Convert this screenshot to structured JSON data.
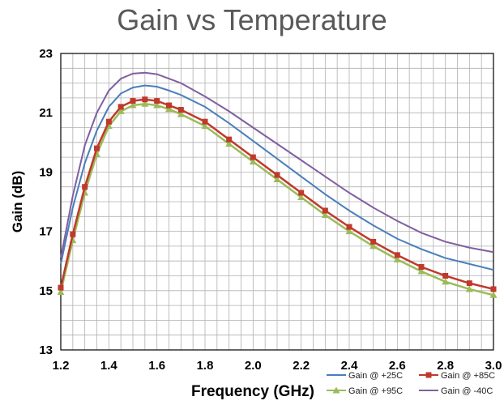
{
  "chart_data": {
    "type": "line",
    "title": "Gain vs Temperature",
    "xlabel": "Frequency (GHz)",
    "ylabel": "Gain (dB)",
    "xlim": [
      1.2,
      3.0
    ],
    "ylim": [
      13,
      23
    ],
    "xticks": [
      "1.2",
      "1.4",
      "1.6",
      "1.8",
      "2.0",
      "2.2",
      "2.4",
      "2.6",
      "2.8",
      "3.0"
    ],
    "yticks": [
      "13",
      "15",
      "17",
      "19",
      "21",
      "23"
    ],
    "grid": true,
    "legend_position": "bottom-right",
    "x": [
      1.2,
      1.25,
      1.3,
      1.35,
      1.4,
      1.45,
      1.5,
      1.55,
      1.6,
      1.65,
      1.7,
      1.8,
      1.9,
      2.0,
      2.1,
      2.2,
      2.3,
      2.4,
      2.5,
      2.6,
      2.7,
      2.8,
      2.9,
      3.0
    ],
    "series": [
      {
        "name": "Gain @ +25C",
        "color": "#4a7ebb",
        "marker": "none",
        "values": [
          15.9,
          17.8,
          19.3,
          20.4,
          21.2,
          21.65,
          21.85,
          21.92,
          21.88,
          21.75,
          21.6,
          21.2,
          20.65,
          20.05,
          19.45,
          18.85,
          18.25,
          17.7,
          17.2,
          16.75,
          16.4,
          16.1,
          15.9,
          15.7
        ]
      },
      {
        "name": "Gain @ +85C",
        "color": "#c0392b",
        "marker": "square",
        "values": [
          15.1,
          16.9,
          18.5,
          19.8,
          20.7,
          21.2,
          21.4,
          21.45,
          21.4,
          21.25,
          21.1,
          20.7,
          20.1,
          19.5,
          18.9,
          18.3,
          17.7,
          17.15,
          16.65,
          16.2,
          15.8,
          15.5,
          15.25,
          15.05
        ]
      },
      {
        "name": "Gain @ +95C",
        "color": "#9bbb59",
        "marker": "triangle",
        "values": [
          14.95,
          16.7,
          18.3,
          19.6,
          20.55,
          21.05,
          21.25,
          21.3,
          21.25,
          21.12,
          20.95,
          20.55,
          19.95,
          19.35,
          18.75,
          18.15,
          17.55,
          17.0,
          16.5,
          16.05,
          15.65,
          15.3,
          15.05,
          14.85
        ]
      },
      {
        "name": "Gain @ -40C",
        "color": "#7f5fa0",
        "marker": "none",
        "values": [
          16.1,
          18.2,
          19.9,
          21.0,
          21.75,
          22.15,
          22.32,
          22.35,
          22.3,
          22.15,
          22.0,
          21.55,
          21.05,
          20.5,
          19.95,
          19.4,
          18.85,
          18.3,
          17.8,
          17.35,
          16.95,
          16.65,
          16.45,
          16.3
        ]
      }
    ]
  }
}
